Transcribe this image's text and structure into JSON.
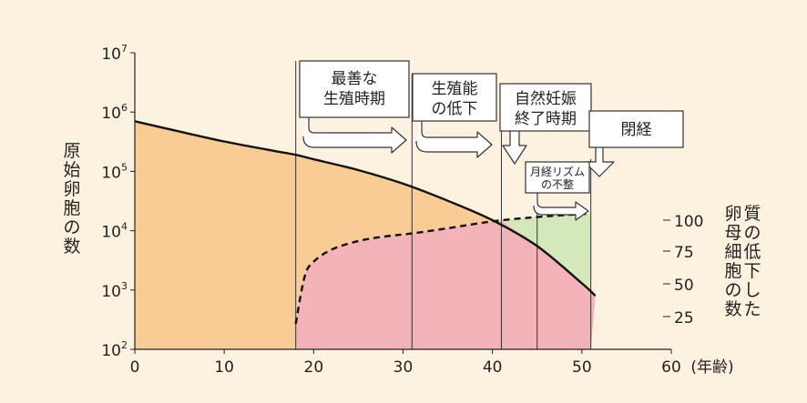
{
  "chart_data": {
    "type": "area",
    "x": {
      "min": 0,
      "max": 60,
      "ticks": [
        "0",
        "10",
        "20",
        "30",
        "40",
        "50",
        "60"
      ],
      "unit_label": "(年齢)"
    },
    "y_left": {
      "scale": "log",
      "min": 100,
      "max": 10000000,
      "ticks": [
        {
          "base": "10",
          "exp": "2"
        },
        {
          "base": "10",
          "exp": "3"
        },
        {
          "base": "10",
          "exp": "4"
        },
        {
          "base": "10",
          "exp": "5"
        },
        {
          "base": "10",
          "exp": "6"
        },
        {
          "base": "10",
          "exp": "7"
        }
      ],
      "label_lines": [
        "原",
        "始",
        "卵",
        "胞",
        "の",
        "数"
      ]
    },
    "y_right": {
      "ticks": [
        "100",
        "75",
        "50",
        "25"
      ],
      "label_columns": [
        [
          "質",
          "の",
          "低",
          "下",
          "し",
          "た"
        ],
        [
          "卵",
          "母",
          "細",
          "胞",
          "の",
          "数"
        ]
      ]
    },
    "series": [
      {
        "style": "solid",
        "points": [
          [
            0,
            700000
          ],
          [
            5,
            470000
          ],
          [
            10,
            320000
          ],
          [
            15,
            230000
          ],
          [
            18,
            190000
          ],
          [
            20,
            160000
          ],
          [
            25,
            105000
          ],
          [
            30,
            62000
          ],
          [
            35,
            32000
          ],
          [
            40,
            15000
          ],
          [
            45,
            5500
          ],
          [
            50,
            1300
          ],
          [
            51.5,
            800
          ]
        ]
      },
      {
        "style": "dashed",
        "points": [
          [
            18,
            270
          ],
          [
            19,
            1700
          ],
          [
            20,
            3000
          ],
          [
            22,
            4800
          ],
          [
            25,
            6700
          ],
          [
            28,
            8000
          ],
          [
            31,
            9000
          ],
          [
            35,
            11000
          ],
          [
            38,
            13000
          ],
          [
            41,
            15000
          ],
          [
            45,
            17000
          ],
          [
            48,
            18300
          ],
          [
            51,
            19500
          ]
        ]
      }
    ],
    "regions": [
      {
        "color": "#f8cc94"
      },
      {
        "color": "#f4b3b8"
      },
      {
        "color": "#d5e8bb"
      }
    ],
    "markers_x": [
      18,
      31,
      41,
      45,
      51
    ],
    "annotations": [
      {
        "lines": [
          "最善な",
          "生殖時期"
        ]
      },
      {
        "lines": [
          "生殖能",
          "の低下"
        ]
      },
      {
        "lines": [
          "自然妊娠",
          "終了時期"
        ]
      },
      {
        "lines": [
          "閉経"
        ]
      },
      {
        "lines": [
          "月経リズム",
          "の不整"
        ]
      }
    ]
  }
}
